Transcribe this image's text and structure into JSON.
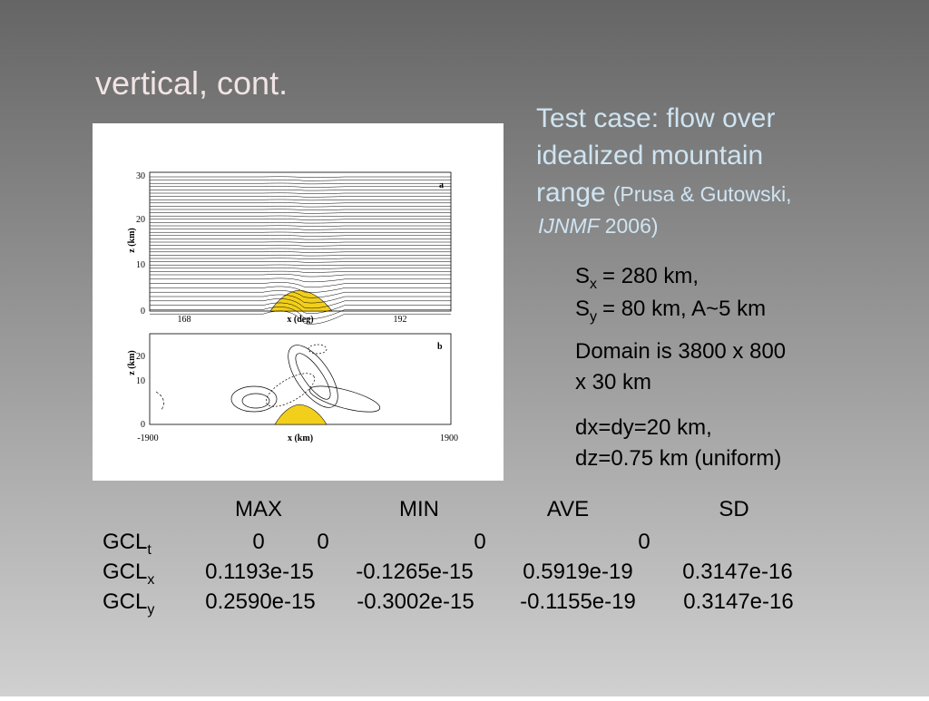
{
  "title": "vertical, cont.",
  "description": {
    "main": "Test case: flow over",
    "line2": "idealized mountain",
    "line3": "range",
    "ref_open": "(Prusa & Gutowski,",
    "journal": "IJNMF",
    "year": "2006)"
  },
  "parameters": [
    {
      "base": "S",
      "sub": "x",
      "rest": "= 280 km,"
    },
    {
      "base": "S",
      "sub": "y",
      "rest": "= 80 km, A~5 km"
    }
  ],
  "notes": [
    [
      "Domain is 3800 x 800",
      "x 30 km"
    ],
    [
      "dx=dy=20 km,",
      "dz=0.75 km (uniform)"
    ]
  ],
  "figure": {
    "panel_a": {
      "label": "a",
      "yticks": [
        "30",
        "20",
        "10",
        "0"
      ],
      "ylabel": "z (km)",
      "xticks": [
        "168",
        "192"
      ],
      "xlabel": "x (deg)"
    },
    "panel_b": {
      "label": "b",
      "yticks": [
        "20",
        "10",
        "0"
      ],
      "ylabel": "z (km)",
      "xticks": [
        "-1900",
        "1900"
      ],
      "xlabel": "x (km)"
    }
  },
  "table": {
    "header": [
      "MAX",
      "MIN",
      "AVE",
      "SD"
    ],
    "rows": [
      {
        "base": "GCL",
        "sub": "t",
        "cells": [
          "0",
          "0",
          "0",
          "0"
        ]
      },
      {
        "base": "GCL",
        "sub": "x",
        "cells": [
          "0.1193e-15",
          "-0.1265e-15",
          "0.5919e-19",
          "0.3147e-16"
        ]
      },
      {
        "base": "GCL",
        "sub": "y",
        "cells": [
          "0.2590e-15",
          "-0.3002e-15",
          "-0.1155e-19",
          "0.3147e-16"
        ]
      }
    ]
  }
}
